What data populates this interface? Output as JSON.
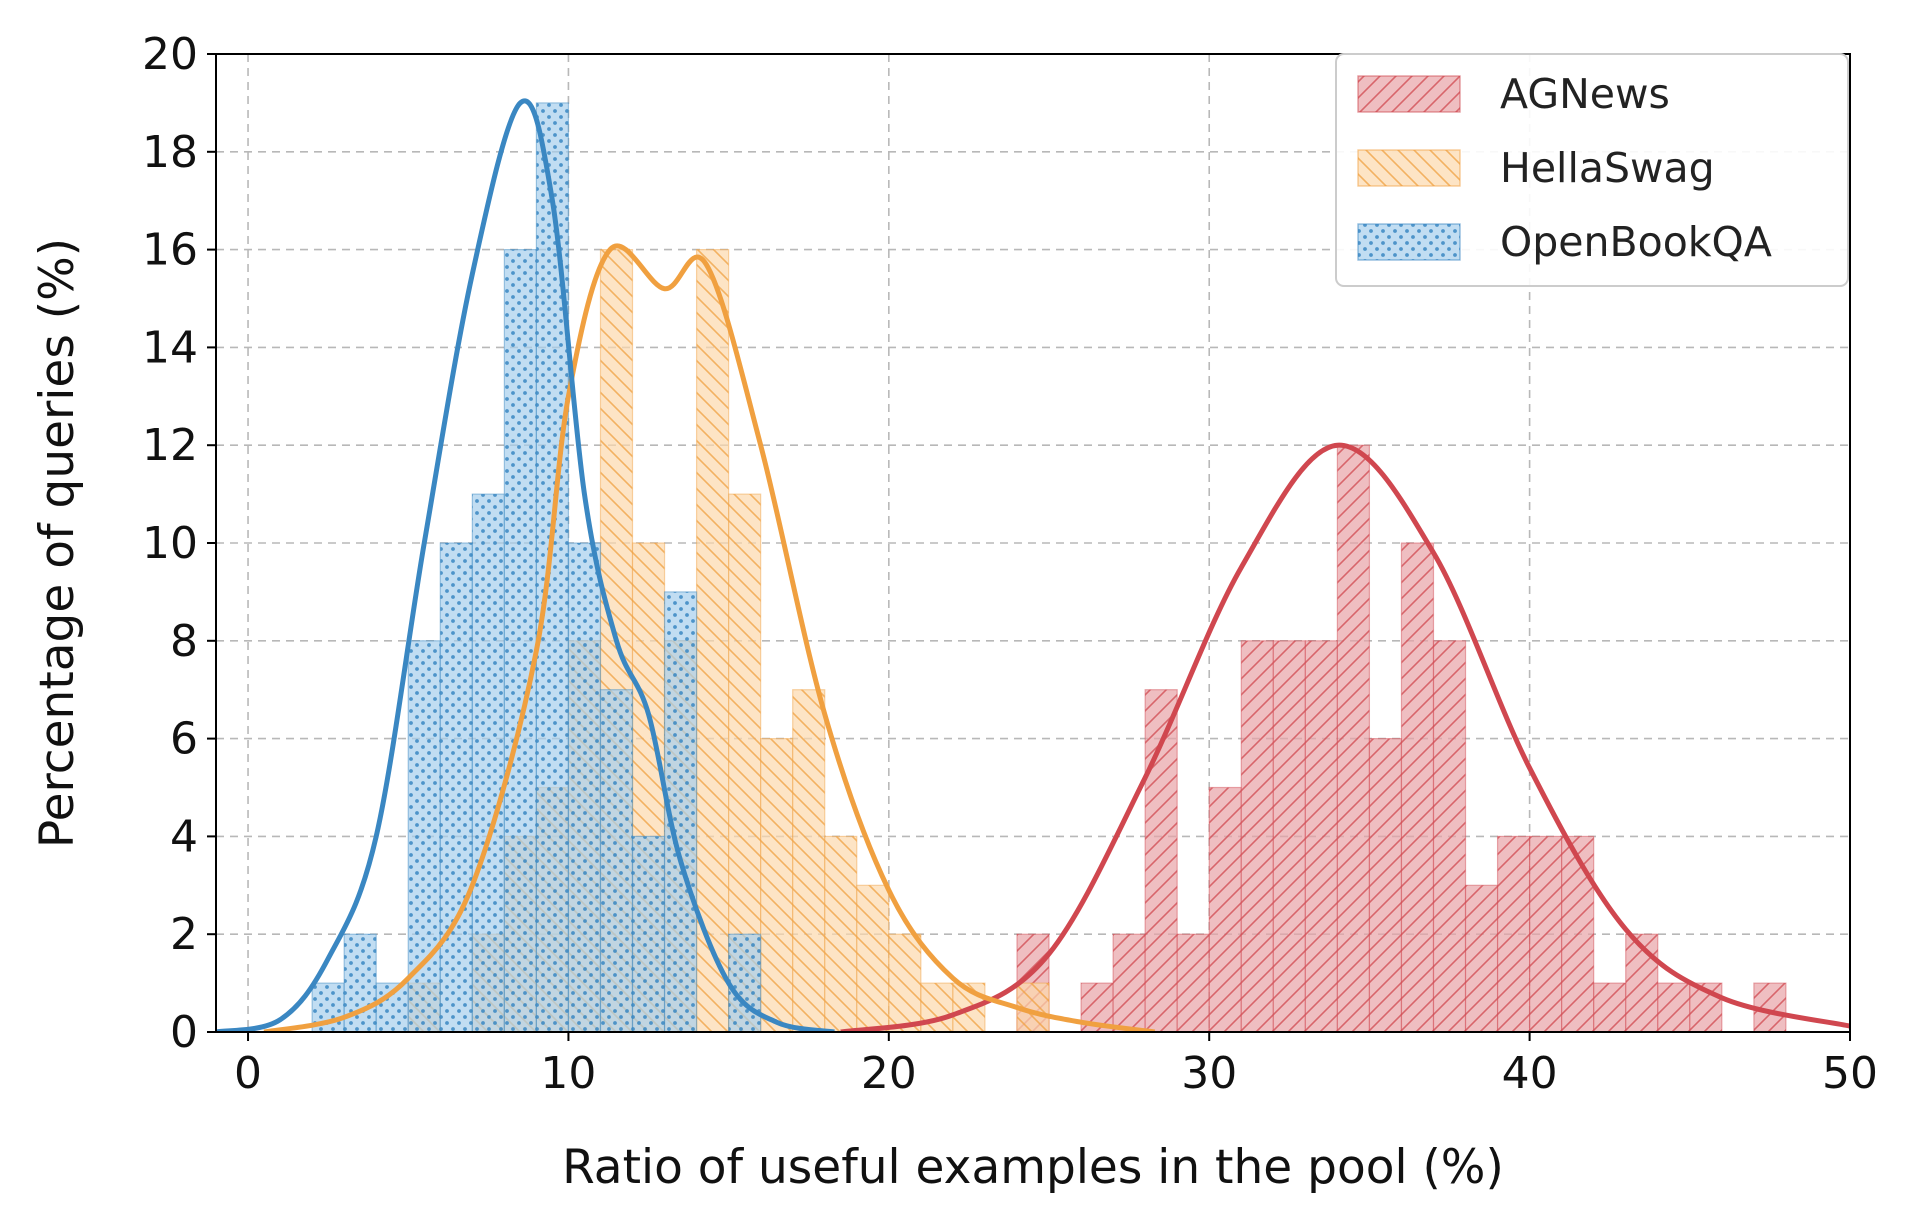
{
  "chart_data": {
    "type": "bar",
    "xlabel": "Ratio of useful examples in the pool (%)",
    "ylabel": "Percentage of queries (%)",
    "xlim": [
      -1,
      50
    ],
    "ylim": [
      0,
      20
    ],
    "xticks": [
      0,
      10,
      20,
      30,
      40,
      50
    ],
    "yticks": [
      0,
      2,
      4,
      6,
      8,
      10,
      12,
      14,
      16,
      18,
      20
    ],
    "grid": true,
    "legend_position": "top-right",
    "bin_width": 1,
    "series": [
      {
        "name": "AGNews",
        "color": "#d0474f",
        "fill": "#e8a3a7",
        "hatch": "diagonal-right",
        "bins": [
          [
            24,
            2
          ],
          [
            26,
            1
          ],
          [
            27,
            2
          ],
          [
            28,
            7
          ],
          [
            29,
            2
          ],
          [
            30,
            5
          ],
          [
            31,
            8
          ],
          [
            32,
            8
          ],
          [
            33,
            8
          ],
          [
            34,
            12
          ],
          [
            35,
            6
          ],
          [
            36,
            10
          ],
          [
            37,
            8
          ],
          [
            38,
            3
          ],
          [
            39,
            4
          ],
          [
            40,
            4
          ],
          [
            41,
            4
          ],
          [
            42,
            1
          ],
          [
            43,
            2
          ],
          [
            44,
            1
          ],
          [
            45,
            1
          ],
          [
            47,
            1
          ]
        ],
        "kde": [
          [
            18.5,
            0.0
          ],
          [
            22,
            0.35
          ],
          [
            25,
            1.6
          ],
          [
            28,
            5.2
          ],
          [
            31,
            9.5
          ],
          [
            34,
            12.0
          ],
          [
            37,
            9.8
          ],
          [
            40,
            5.4
          ],
          [
            43,
            2.1
          ],
          [
            46,
            0.7
          ],
          [
            50,
            0.12
          ]
        ]
      },
      {
        "name": "HellaSwag",
        "color": "#f0a040",
        "fill": "#fcd9ac",
        "hatch": "diagonal-left",
        "bins": [
          [
            5,
            1
          ],
          [
            7,
            2
          ],
          [
            8,
            4
          ],
          [
            9,
            5
          ],
          [
            10,
            8
          ],
          [
            11,
            16
          ],
          [
            12,
            10
          ],
          [
            13,
            8
          ],
          [
            14,
            16
          ],
          [
            15,
            11
          ],
          [
            16,
            6
          ],
          [
            17,
            7
          ],
          [
            18,
            4
          ],
          [
            19,
            3
          ],
          [
            20,
            2
          ],
          [
            21,
            1
          ],
          [
            22,
            1
          ],
          [
            24,
            1
          ]
        ],
        "kde": [
          [
            0.5,
            0.0
          ],
          [
            3,
            0.3
          ],
          [
            5,
            1.1
          ],
          [
            7,
            3.0
          ],
          [
            9,
            7.8
          ],
          [
            10,
            13.0
          ],
          [
            11.3,
            16.0
          ],
          [
            13,
            15.2
          ],
          [
            14.3,
            15.7
          ],
          [
            16,
            12.0
          ],
          [
            18,
            6.5
          ],
          [
            20,
            2.9
          ],
          [
            22,
            1.1
          ],
          [
            24,
            0.5
          ],
          [
            26,
            0.2
          ],
          [
            28.3,
            0.0
          ]
        ]
      },
      {
        "name": "OpenBookQA",
        "color": "#3a87c2",
        "fill": "#a6cfec",
        "hatch": "dots",
        "bins": [
          [
            2,
            1
          ],
          [
            3,
            2
          ],
          [
            4,
            1
          ],
          [
            5,
            8
          ],
          [
            6,
            10
          ],
          [
            7,
            11
          ],
          [
            8,
            16
          ],
          [
            9,
            19
          ],
          [
            10,
            10
          ],
          [
            11,
            7
          ],
          [
            12,
            4
          ],
          [
            13,
            9
          ],
          [
            15,
            2
          ]
        ],
        "kde": [
          [
            -1,
            0.0
          ],
          [
            1,
            0.25
          ],
          [
            2.5,
            1.5
          ],
          [
            4,
            4.0
          ],
          [
            5.5,
            10.0
          ],
          [
            7,
            15.5
          ],
          [
            8.5,
            19.0
          ],
          [
            9.5,
            17.0
          ],
          [
            10.5,
            11.0
          ],
          [
            11.5,
            8.0
          ],
          [
            12.5,
            6.5
          ],
          [
            13.5,
            3.5
          ],
          [
            15,
            1.0
          ],
          [
            16.5,
            0.2
          ],
          [
            18.3,
            0.0
          ]
        ]
      }
    ]
  }
}
